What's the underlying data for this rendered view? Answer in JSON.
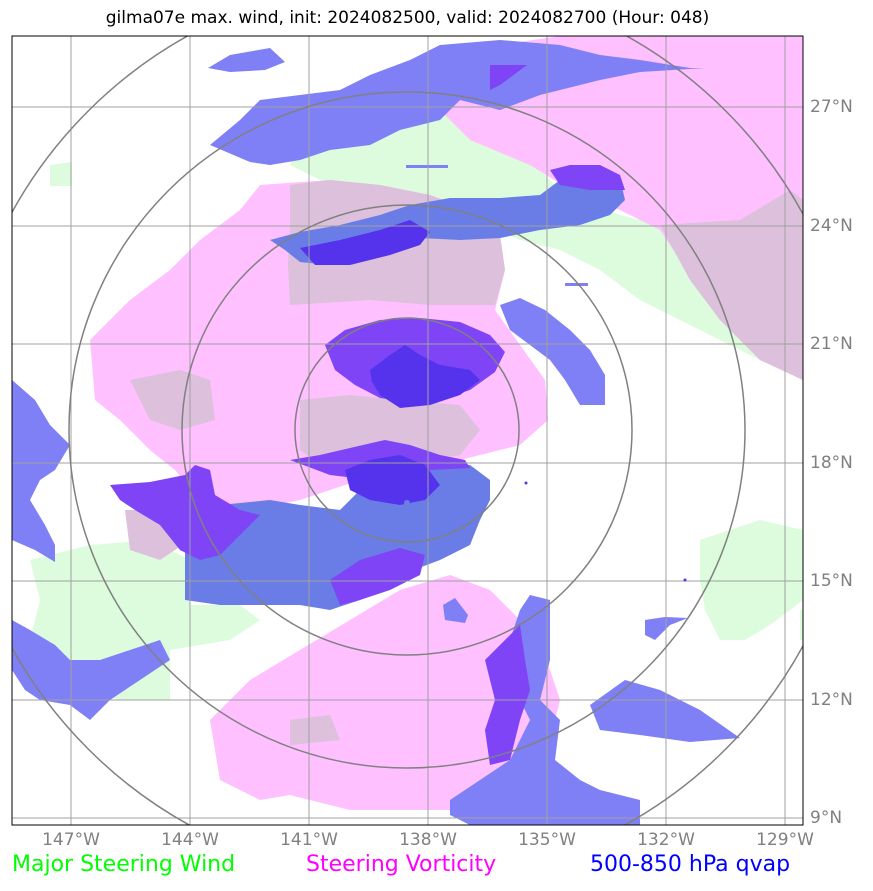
{
  "title": "gilma07e max. wind, init: 2024082500, valid: 2024082700 (Hour: 048)",
  "axes": {
    "lon_ticks": [
      "147°W",
      "144°W",
      "141°W",
      "138°W",
      "135°W",
      "132°W",
      "129°W"
    ],
    "lat_ticks": [
      "27°N",
      "24°N",
      "21°N",
      "18°N",
      "15°N",
      "12°N",
      "9°N"
    ]
  },
  "legend": {
    "wind": {
      "label": "Major Steering Wind",
      "color": "#00ff00"
    },
    "vorticity": {
      "label": "Steering Vorticity",
      "color": "#ff00ff"
    },
    "qvap": {
      "label": "500-850 hPa qvap",
      "color": "#0000ff"
    }
  },
  "colors": {
    "wind_fill": "#ddfcdd",
    "vorticity_fill": "#ffc0ff",
    "overlap_fill": "#dcc0dc",
    "qvap_light": "#7f7ff6",
    "qvap_medium": "#6a7de6",
    "qvap_dark": "#7e44f6",
    "qvap_darkest": "#5533ec",
    "grid": "#a0a0a0",
    "rings": "#808080"
  }
}
